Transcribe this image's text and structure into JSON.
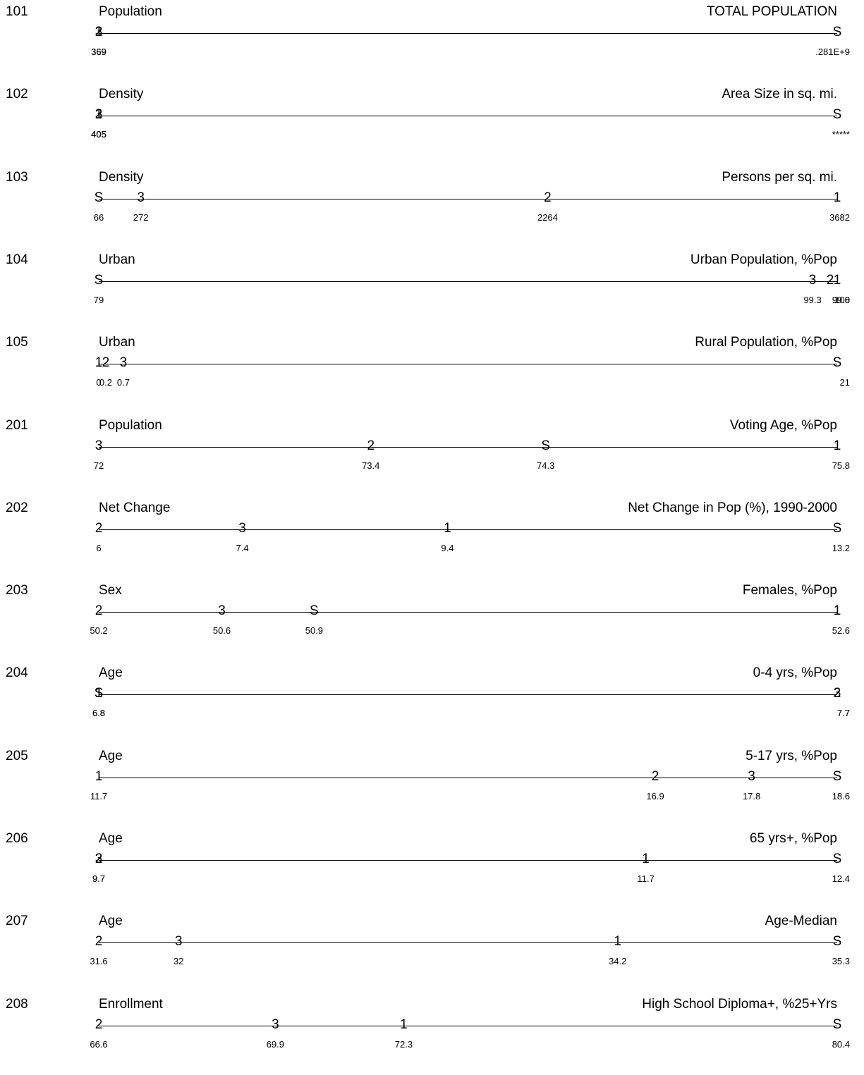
{
  "chart_data": {
    "type": "dot-strip",
    "rows": [
      {
        "code": "101",
        "group": "Population",
        "variable": "TOTAL POPULATION",
        "xlim": [
          "369",
          ".281E+9"
        ],
        "points": [
          {
            "label": "2",
            "value": "369"
          },
          {
            "label": "1",
            "value": "369"
          },
          {
            "label": "3",
            "value": "369"
          },
          {
            "label": "S",
            "value": ".281E+9"
          }
        ]
      },
      {
        "code": "102",
        "group": "Density",
        "variable": "Area Size in sq. mi.",
        "xlim": [
          "405",
          "*****"
        ],
        "points": [
          {
            "label": "1",
            "value": "405"
          },
          {
            "label": "2",
            "value": "405"
          },
          {
            "label": "3",
            "value": "405"
          },
          {
            "label": "S",
            "value": "*****"
          }
        ]
      },
      {
        "code": "103",
        "group": "Density",
        "variable": "Persons per sq. mi.",
        "xlim": [
          66,
          3682
        ],
        "points": [
          {
            "label": "S",
            "value": 66
          },
          {
            "label": "3",
            "value": 272
          },
          {
            "label": "2",
            "value": 2264
          },
          {
            "label": "1",
            "value": 3682
          }
        ]
      },
      {
        "code": "104",
        "group": "Urban",
        "variable": "Urban Population, %Pop",
        "xlim": [
          79.0,
          100.0
        ],
        "points": [
          {
            "label": "S",
            "value": 79.0
          },
          {
            "label": "3",
            "value": 99.3
          },
          {
            "label": "2",
            "value": 99.8
          },
          {
            "label": "1",
            "value": 100.0
          }
        ]
      },
      {
        "code": "105",
        "group": "Urban",
        "variable": "Rural Population, %Pop",
        "xlim": [
          0.0,
          21.0
        ],
        "points": [
          {
            "label": "1",
            "value": 0.0
          },
          {
            "label": "2",
            "value": 0.2
          },
          {
            "label": "3",
            "value": 0.7
          },
          {
            "label": "S",
            "value": 21.0
          }
        ]
      },
      {
        "code": "201",
        "group": "Population",
        "variable": "Voting Age, %Pop",
        "xlim": [
          72.0,
          75.8
        ],
        "points": [
          {
            "label": "3",
            "value": 72.0
          },
          {
            "label": "2",
            "value": 73.4
          },
          {
            "label": "S",
            "value": 74.3
          },
          {
            "label": "1",
            "value": 75.8
          }
        ]
      },
      {
        "code": "202",
        "group": "Net Change",
        "variable": "Net Change in Pop (%), 1990-2000",
        "xlim": [
          6.0,
          13.2
        ],
        "points": [
          {
            "label": "2",
            "value": 6.0
          },
          {
            "label": "3",
            "value": 7.4
          },
          {
            "label": "1",
            "value": 9.4
          },
          {
            "label": "S",
            "value": 13.2
          }
        ]
      },
      {
        "code": "203",
        "group": "Sex",
        "variable": "Females, %Pop",
        "xlim": [
          50.2,
          52.6
        ],
        "points": [
          {
            "label": "2",
            "value": 50.2
          },
          {
            "label": "3",
            "value": 50.6
          },
          {
            "label": "S",
            "value": 50.9
          },
          {
            "label": "1",
            "value": 52.6
          }
        ]
      },
      {
        "code": "204",
        "group": "Age",
        "variable": "0-4 yrs, %Pop",
        "xlim": [
          6.8,
          7.7
        ],
        "points": [
          {
            "label": "1",
            "value": 6.8
          },
          {
            "label": "S",
            "value": 6.8
          },
          {
            "label": "2",
            "value": 7.7
          },
          {
            "label": "3",
            "value": 7.7
          }
        ]
      },
      {
        "code": "205",
        "group": "Age",
        "variable": "5-17 yrs, %Pop",
        "xlim": [
          11.7,
          18.6
        ],
        "points": [
          {
            "label": "1",
            "value": 11.7
          },
          {
            "label": "2",
            "value": 16.9
          },
          {
            "label": "3",
            "value": 17.8
          },
          {
            "label": "S",
            "value": 18.6
          }
        ]
      },
      {
        "code": "206",
        "group": "Age",
        "variable": "65 yrs+, %Pop",
        "xlim": [
          9.7,
          12.4
        ],
        "points": [
          {
            "label": "2",
            "value": 9.7
          },
          {
            "label": "3",
            "value": 9.7
          },
          {
            "label": "1",
            "value": 11.7
          },
          {
            "label": "S",
            "value": 12.4
          }
        ]
      },
      {
        "code": "207",
        "group": "Age",
        "variable": "Age-Median",
        "xlim": [
          31.6,
          35.3
        ],
        "points": [
          {
            "label": "2",
            "value": 31.6
          },
          {
            "label": "3",
            "value": 32.0
          },
          {
            "label": "1",
            "value": 34.2
          },
          {
            "label": "S",
            "value": 35.3
          }
        ]
      },
      {
        "code": "208",
        "group": "Enrollment",
        "variable": "High School Diploma+, %25+Yrs",
        "xlim": [
          66.6,
          80.4
        ],
        "points": [
          {
            "label": "2",
            "value": 66.6
          },
          {
            "label": "3",
            "value": 69.9
          },
          {
            "label": "1",
            "value": 72.3
          },
          {
            "label": "S",
            "value": 80.4
          }
        ]
      }
    ]
  }
}
